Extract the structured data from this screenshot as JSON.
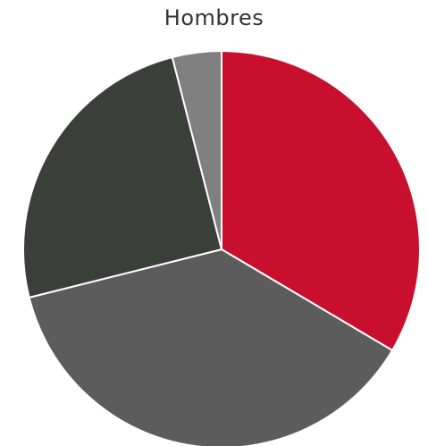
{
  "chart_data": {
    "type": "pie",
    "title": "Hombres",
    "legend": "none",
    "slices": [
      {
        "value": 33.5,
        "color": "#c8102e"
      },
      {
        "value": 37.6,
        "color": "#5c5c5c"
      },
      {
        "value": 24.9,
        "color": "#3a3f3a"
      },
      {
        "value": 4.0,
        "color": "#808080"
      }
    ]
  }
}
